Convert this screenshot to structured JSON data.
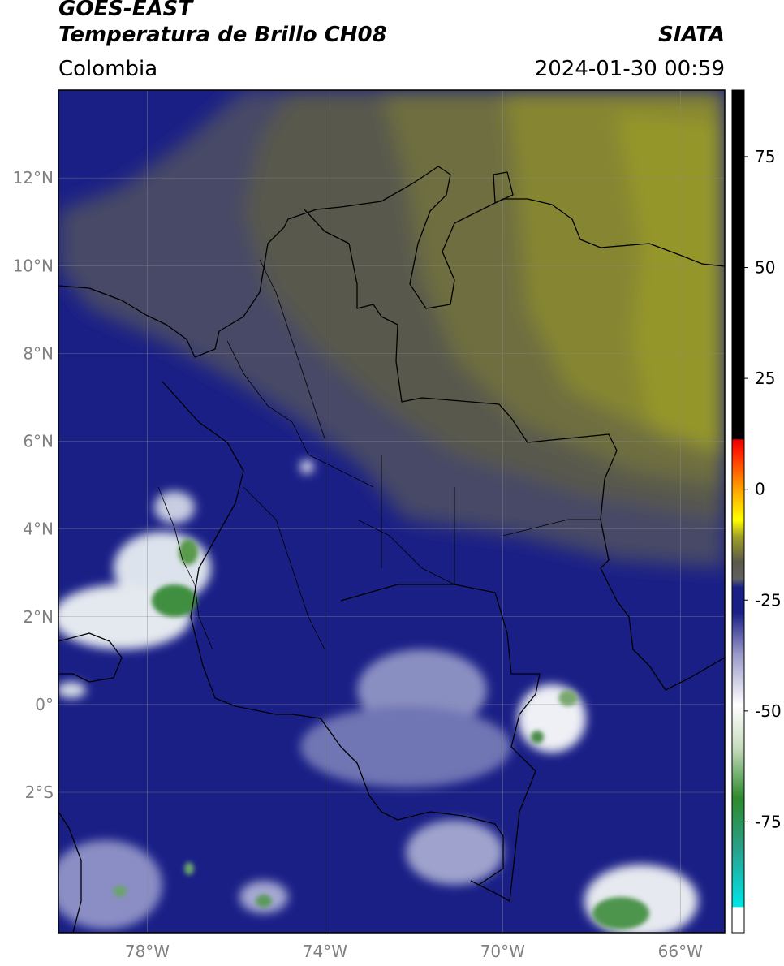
{
  "header": {
    "satellite": "GOES-EAST",
    "product": "Temperatura de Brillo CH08",
    "organization": "SIATA",
    "region": "Colombia",
    "datetime": "2024-01-30 00:59"
  },
  "map": {
    "extent": {
      "lon_min": -80,
      "lon_max": -65,
      "lat_min": -5.2,
      "lat_max": 14
    },
    "lat_ticks": [
      {
        "value": 12,
        "label": "12°N"
      },
      {
        "value": 10,
        "label": "10°N"
      },
      {
        "value": 8,
        "label": "8°N"
      },
      {
        "value": 6,
        "label": "6°N"
      },
      {
        "value": 4,
        "label": "4°N"
      },
      {
        "value": 2,
        "label": "2°N"
      },
      {
        "value": 0,
        "label": "0°"
      },
      {
        "value": -2,
        "label": "2°S"
      }
    ],
    "lon_ticks": [
      {
        "value": -78,
        "label": "78°W"
      },
      {
        "value": -74,
        "label": "74°W"
      },
      {
        "value": -70,
        "label": "70°W"
      },
      {
        "value": -66,
        "label": "66°W"
      }
    ],
    "colors": {
      "background": "#1a1f86",
      "dry_air": "#5a5a55",
      "very_dry": "#9a9a30",
      "cold_clouds": "#d8d8e8",
      "coldest": "#3f8f3f",
      "border": "#000000"
    }
  },
  "colorbar": {
    "vmin": -100,
    "vmax": 90,
    "ticks": [
      {
        "value": 75,
        "label": "75"
      },
      {
        "value": 50,
        "label": "50"
      },
      {
        "value": 25,
        "label": "25"
      },
      {
        "value": 0,
        "label": "0"
      },
      {
        "value": -25,
        "label": "-25"
      },
      {
        "value": -50,
        "label": "-50"
      },
      {
        "value": -75,
        "label": "-75"
      }
    ]
  }
}
